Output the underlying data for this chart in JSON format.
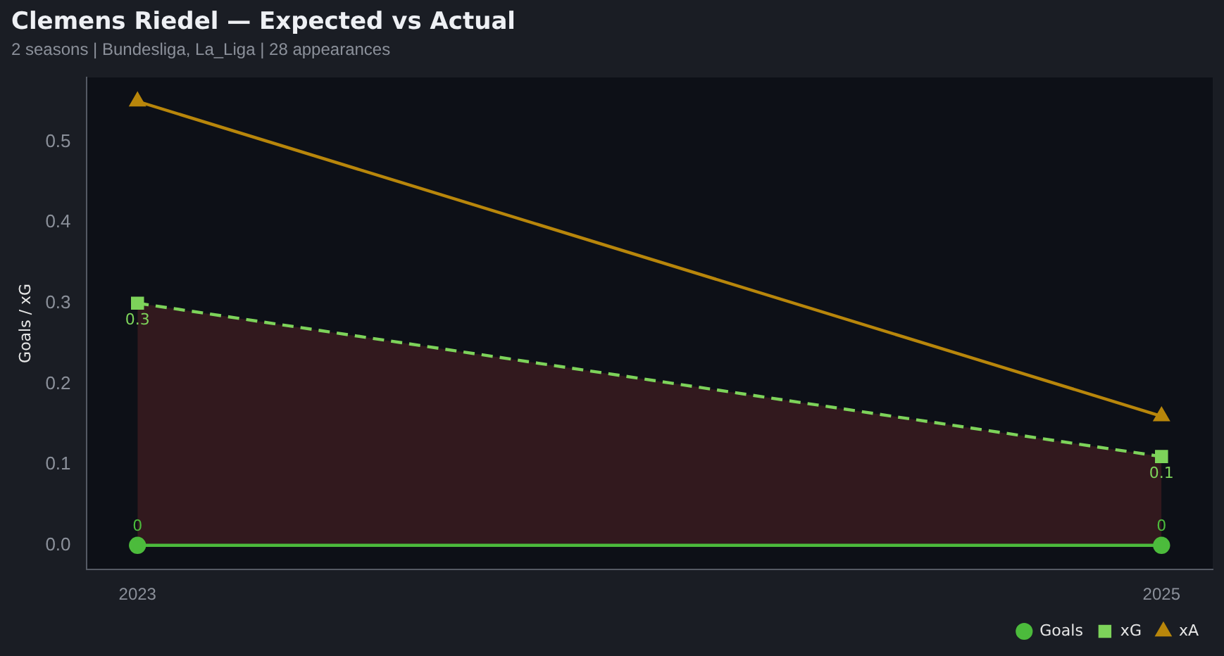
{
  "chart_data": {
    "type": "line",
    "title": "Clemens Riedel — Expected vs Actual",
    "subtitle": "2 seasons | Bundesliga, La_Liga | 28 appearances",
    "ylabel": "Goals / xG",
    "categories": [
      "2023",
      "2025"
    ],
    "series": [
      {
        "name": "Goals",
        "color": "#4cbb3c",
        "values": [
          0,
          0
        ],
        "marker": "circle",
        "line_style": "solid",
        "value_labels": [
          "0",
          "0"
        ]
      },
      {
        "name": "xG",
        "type": "area",
        "color": "#7dd35a",
        "values": [
          0.3,
          0.11
        ],
        "marker": "square",
        "line_style": "dashed",
        "value_labels": [
          "0.3",
          "0.1"
        ]
      },
      {
        "name": "xA",
        "color": "#b8860b",
        "values": [
          0.55,
          0.16
        ],
        "marker": "triangle",
        "line_style": "solid"
      }
    ],
    "ylim": [
      -0.03,
      0.58
    ],
    "yticks": [
      {
        "value": 0,
        "label": "0.0"
      },
      0.1,
      0.2,
      0.3,
      0.4,
      0.5
    ],
    "grid": false,
    "legend": "bottom right"
  }
}
